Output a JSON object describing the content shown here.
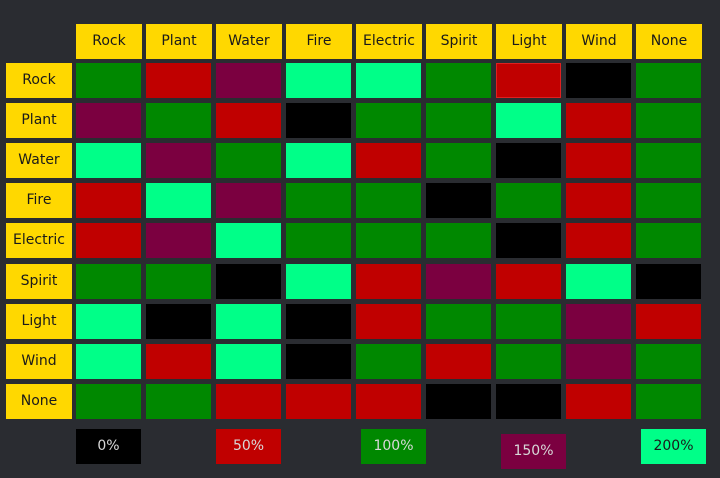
{
  "types": [
    "Rock",
    "Plant",
    "Water",
    "Fire",
    "Electric",
    "Spirit",
    "Light",
    "Wind",
    "None"
  ],
  "colors": {
    "0": "#000000",
    "50": "#c00000",
    "100": "#008800",
    "150": "#7b0040",
    "200": "#00ff88"
  },
  "matrix": [
    [
      100,
      50,
      150,
      200,
      200,
      100,
      50,
      0,
      100
    ],
    [
      150,
      100,
      50,
      0,
      100,
      100,
      200,
      50,
      100
    ],
    [
      200,
      150,
      100,
      200,
      50,
      100,
      0,
      50,
      100
    ],
    [
      50,
      200,
      150,
      100,
      100,
      0,
      100,
      50,
      100
    ],
    [
      50,
      150,
      200,
      100,
      100,
      100,
      0,
      50,
      100
    ],
    [
      100,
      100,
      0,
      200,
      50,
      150,
      50,
      200,
      0
    ],
    [
      200,
      0,
      200,
      0,
      50,
      100,
      100,
      150,
      50
    ],
    [
      200,
      50,
      200,
      0,
      100,
      50,
      100,
      150,
      100
    ],
    [
      100,
      100,
      50,
      50,
      50,
      0,
      0,
      50,
      100
    ]
  ],
  "legend": [
    {
      "value": 0,
      "label": "0%"
    },
    {
      "value": 50,
      "label": "50%"
    },
    {
      "value": 100,
      "label": "100%"
    },
    {
      "value": 150,
      "label": "150%"
    },
    {
      "value": 200,
      "label": "200%"
    }
  ]
}
